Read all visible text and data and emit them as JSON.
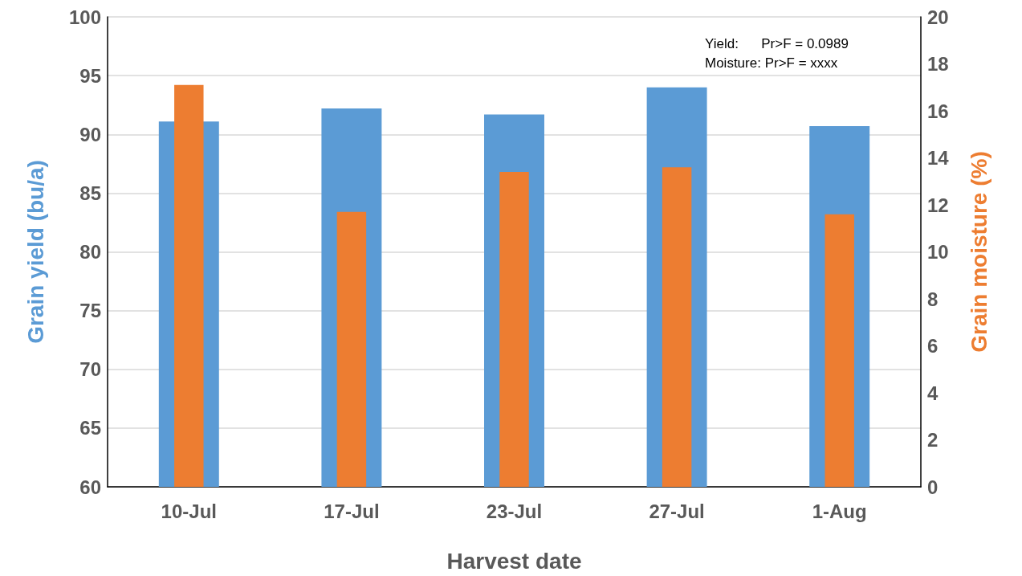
{
  "chart_data": {
    "type": "bar",
    "xlabel": "Harvest date",
    "ylabel": "Grain yield (bu/a)",
    "y2label": "Grain moisture (%)",
    "categories": [
      "10-Jul",
      "17-Jul",
      "23-Jul",
      "27-Jul",
      "1-Aug"
    ],
    "series": [
      {
        "color": "#5b9bd5",
        "values": [
          91.1,
          92.2,
          91.7,
          94.0,
          90.7
        ]
      },
      {
        "color": "#ed7d31",
        "axis": "y2",
        "values": [
          17.1,
          11.7,
          13.4,
          13.6,
          11.6
        ]
      }
    ],
    "ylim": [
      60,
      100
    ],
    "yticks": [
      60,
      65,
      70,
      75,
      80,
      85,
      90,
      95,
      100
    ],
    "y2lim": [
      0,
      20
    ],
    "y2ticks": [
      0,
      2,
      4,
      6,
      8,
      10,
      12,
      14,
      16,
      18,
      20
    ],
    "grid": "y",
    "annotations": [
      "Yield:      Pr>F = 0.0989",
      "Moisture: Pr>F = xxxx"
    ]
  }
}
